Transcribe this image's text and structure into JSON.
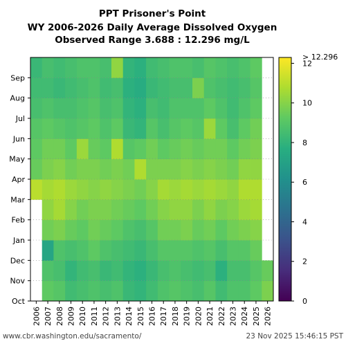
{
  "chart_data": {
    "type": "heatmap",
    "title": [
      "PPT Prisoner's Point",
      "WY 2006-2026 Daily Average Dissolved Oxygen",
      "Observed Range 3.688 : 12.296 mg/L"
    ],
    "x": {
      "tick_labels": [
        "2006",
        "2007",
        "2008",
        "2009",
        "2010",
        "2011",
        "2012",
        "2013",
        "2014",
        "2015",
        "2016",
        "2017",
        "2018",
        "2019",
        "2020",
        "2021",
        "2022",
        "2023",
        "2024",
        "2025",
        "2026"
      ]
    },
    "y": {
      "tick_labels": [
        "Oct",
        "Nov",
        "Dec",
        "Jan",
        "Feb",
        "Mar",
        "Apr",
        "May",
        "Jun",
        "Jul",
        "Aug",
        "Sep"
      ]
    },
    "colorbar": {
      "colormap": "viridis",
      "range": [
        0,
        12.296
      ],
      "tick_values": [
        0,
        2,
        4,
        6,
        8,
        10,
        12
      ],
      "tick_labels": [
        "0",
        "2",
        "4",
        "6",
        "8",
        "10",
        "12"
      ],
      "max_label": "> 12.296"
    },
    "series": [
      {
        "year": "2006",
        "monthly_mean": [
          null,
          null,
          null,
          null,
          null,
          11.0,
          9.4,
          9.2,
          9.0,
          8.6,
          8.4,
          8.2
        ]
      },
      {
        "year": "2007",
        "monthly_mean": [
          9.2,
          8.8,
          7.2,
          9.6,
          10.2,
          10.6,
          9.8,
          9.6,
          9.2,
          8.8,
          8.4,
          8.6
        ]
      },
      {
        "year": "2008",
        "monthly_mean": [
          9.0,
          8.6,
          8.8,
          9.8,
          10.6,
          10.8,
          10.0,
          9.6,
          9.0,
          8.6,
          8.2,
          8.4
        ]
      },
      {
        "year": "2009",
        "monthly_mean": [
          8.4,
          8.0,
          8.6,
          9.4,
          10.0,
          10.4,
          9.6,
          9.2,
          8.8,
          8.6,
          8.4,
          8.6
        ]
      },
      {
        "year": "2010",
        "monthly_mean": [
          8.6,
          8.4,
          8.8,
          9.2,
          9.6,
          10.2,
          9.8,
          10.4,
          9.0,
          8.8,
          8.6,
          8.8
        ]
      },
      {
        "year": "2011",
        "monthly_mean": [
          8.8,
          8.6,
          9.2,
          9.6,
          9.8,
          10.0,
          9.8,
          9.4,
          9.2,
          9.0,
          8.8,
          8.8
        ]
      },
      {
        "year": "2012",
        "monthly_mean": [
          8.6,
          8.2,
          8.8,
          9.4,
          9.8,
          10.2,
          9.6,
          9.2,
          8.8,
          8.6,
          8.4,
          8.6
        ]
      },
      {
        "year": "2013",
        "monthly_mean": [
          8.8,
          8.4,
          8.6,
          9.2,
          9.6,
          10.0,
          9.8,
          10.8,
          9.2,
          8.8,
          8.6,
          10.2
        ]
      },
      {
        "year": "2014",
        "monthly_mean": [
          8.2,
          8.0,
          8.4,
          8.8,
          9.4,
          9.8,
          9.6,
          9.0,
          8.2,
          8.0,
          7.8,
          8.0
        ]
      },
      {
        "year": "2015",
        "monthly_mean": [
          8.0,
          7.8,
          8.2,
          8.6,
          9.2,
          9.6,
          10.8,
          9.2,
          8.0,
          7.8,
          7.6,
          7.8
        ]
      },
      {
        "year": "2016",
        "monthly_mean": [
          8.4,
          8.2,
          8.6,
          9.0,
          9.6,
          10.0,
          9.8,
          9.6,
          9.0,
          8.6,
          8.2,
          8.4
        ]
      },
      {
        "year": "2017",
        "monthly_mean": [
          8.8,
          8.6,
          9.0,
          9.6,
          10.0,
          10.6,
          9.8,
          9.2,
          8.6,
          8.4,
          8.4,
          8.6
        ]
      },
      {
        "year": "2018",
        "monthly_mean": [
          9.0,
          8.8,
          9.0,
          9.6,
          10.2,
          10.4,
          9.8,
          9.4,
          9.0,
          8.8,
          8.6,
          8.8
        ]
      },
      {
        "year": "2019",
        "monthly_mean": [
          8.8,
          8.6,
          9.0,
          9.8,
          10.2,
          10.6,
          10.0,
          9.6,
          9.2,
          8.8,
          8.6,
          8.8
        ]
      },
      {
        "year": "2020",
        "monthly_mean": [
          8.6,
          8.4,
          8.8,
          9.4,
          9.8,
          10.4,
          9.8,
          9.4,
          9.0,
          8.8,
          9.8,
          8.6
        ]
      },
      {
        "year": "2021",
        "monthly_mean": [
          9.0,
          8.6,
          9.0,
          9.6,
          10.2,
          10.6,
          10.0,
          9.6,
          10.4,
          9.2,
          8.8,
          9.0
        ]
      },
      {
        "year": "2022",
        "monthly_mean": [
          8.4,
          7.8,
          8.6,
          9.2,
          9.8,
          10.4,
          9.8,
          9.6,
          9.2,
          8.8,
          8.6,
          8.8
        ]
      },
      {
        "year": "2023",
        "monthly_mean": [
          8.8,
          8.6,
          9.0,
          9.6,
          10.0,
          10.2,
          9.6,
          9.2,
          8.6,
          8.4,
          8.4,
          8.6
        ]
      },
      {
        "year": "2024",
        "monthly_mean": [
          8.8,
          8.6,
          9.0,
          9.8,
          10.4,
          10.8,
          10.2,
          9.6,
          9.2,
          8.8,
          8.6,
          8.8
        ]
      },
      {
        "year": "2025",
        "monthly_mean": [
          9.2,
          9.0,
          9.4,
          10.0,
          10.6,
          10.8,
          10.2,
          9.8,
          9.6,
          9.2,
          9.0,
          9.2
        ]
      },
      {
        "year": "2026",
        "monthly_mean": [
          9.8,
          9.4,
          null,
          null,
          null,
          null,
          null,
          null,
          null,
          null,
          null,
          null
        ]
      }
    ]
  },
  "footer": {
    "source": "www.cbr.washington.edu/sacramento/",
    "timestamp": "23 Nov 2025 15:46:15 PST"
  }
}
